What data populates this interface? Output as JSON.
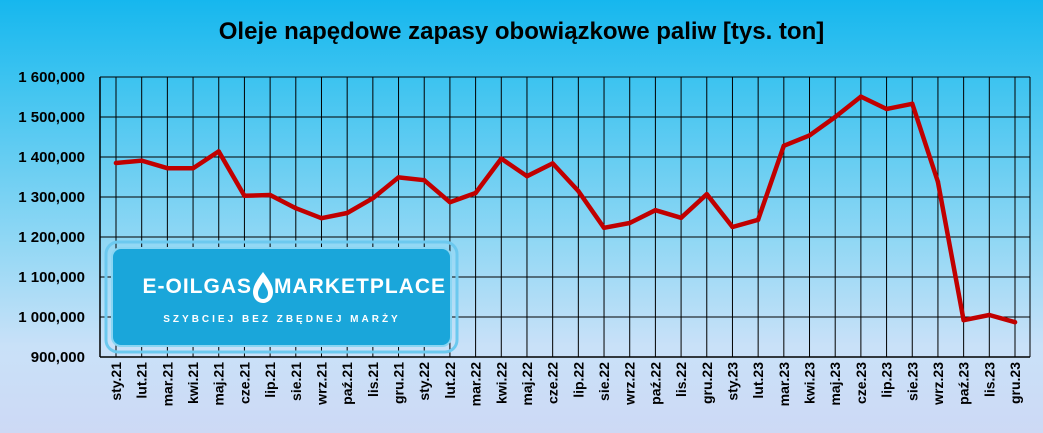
{
  "chart_data": {
    "type": "line",
    "title": "Oleje napędowe zapasy obowiązkowe paliw [tys. ton]",
    "xlabel": "",
    "ylabel": "",
    "ylim": [
      900000,
      1600000
    ],
    "yticks": [
      "900,000",
      "1 000,000",
      "1 100,000",
      "1 200,000",
      "1 300,000",
      "1 400,000",
      "1 500,000",
      "1 600,000"
    ],
    "grid": true,
    "legend": "none",
    "categories": [
      "sty.21",
      "lut.21",
      "mar.21",
      "kwi.21",
      "maj.21",
      "cze.21",
      "lip.21",
      "sie.21",
      "wrz.21",
      "paź.21",
      "lis.21",
      "gru.21",
      "sty.22",
      "lut.22",
      "mar.22",
      "kwi.22",
      "maj.22",
      "cze.22",
      "lip.22",
      "sie.22",
      "wrz.22",
      "paź.22",
      "lis.22",
      "gru.22",
      "sty.23",
      "lut.23",
      "mar.23",
      "kwi.23",
      "maj.23",
      "cze.23",
      "lip.23",
      "sie.23",
      "wrz.23",
      "paź.23",
      "lis.23",
      "gru.23"
    ],
    "series": [
      {
        "color": "#c00000",
        "values": [
          1385000,
          1391000,
          1372000,
          1372000,
          1414000,
          1303000,
          1305000,
          1272000,
          1247000,
          1260000,
          1297000,
          1349000,
          1342000,
          1287000,
          1310000,
          1396000,
          1352000,
          1384000,
          1315000,
          1223000,
          1235000,
          1267000,
          1248000,
          1307000,
          1225000,
          1243000,
          1428000,
          1454000,
          1500000,
          1551000,
          1520000,
          1533000,
          1338000,
          992000,
          1005000,
          987000
        ]
      }
    ]
  },
  "watermark": {
    "brand": "E-OILGAS MARKETPLACE",
    "tagline": "SZYBCIEJ BEZ ZBĘDNEJ MARŻY",
    "icon": "flame-drop-icon"
  },
  "colors": {
    "line": "#c00000",
    "badge_fill": "#1aa6da",
    "badge_border": "#5fc6ee"
  }
}
